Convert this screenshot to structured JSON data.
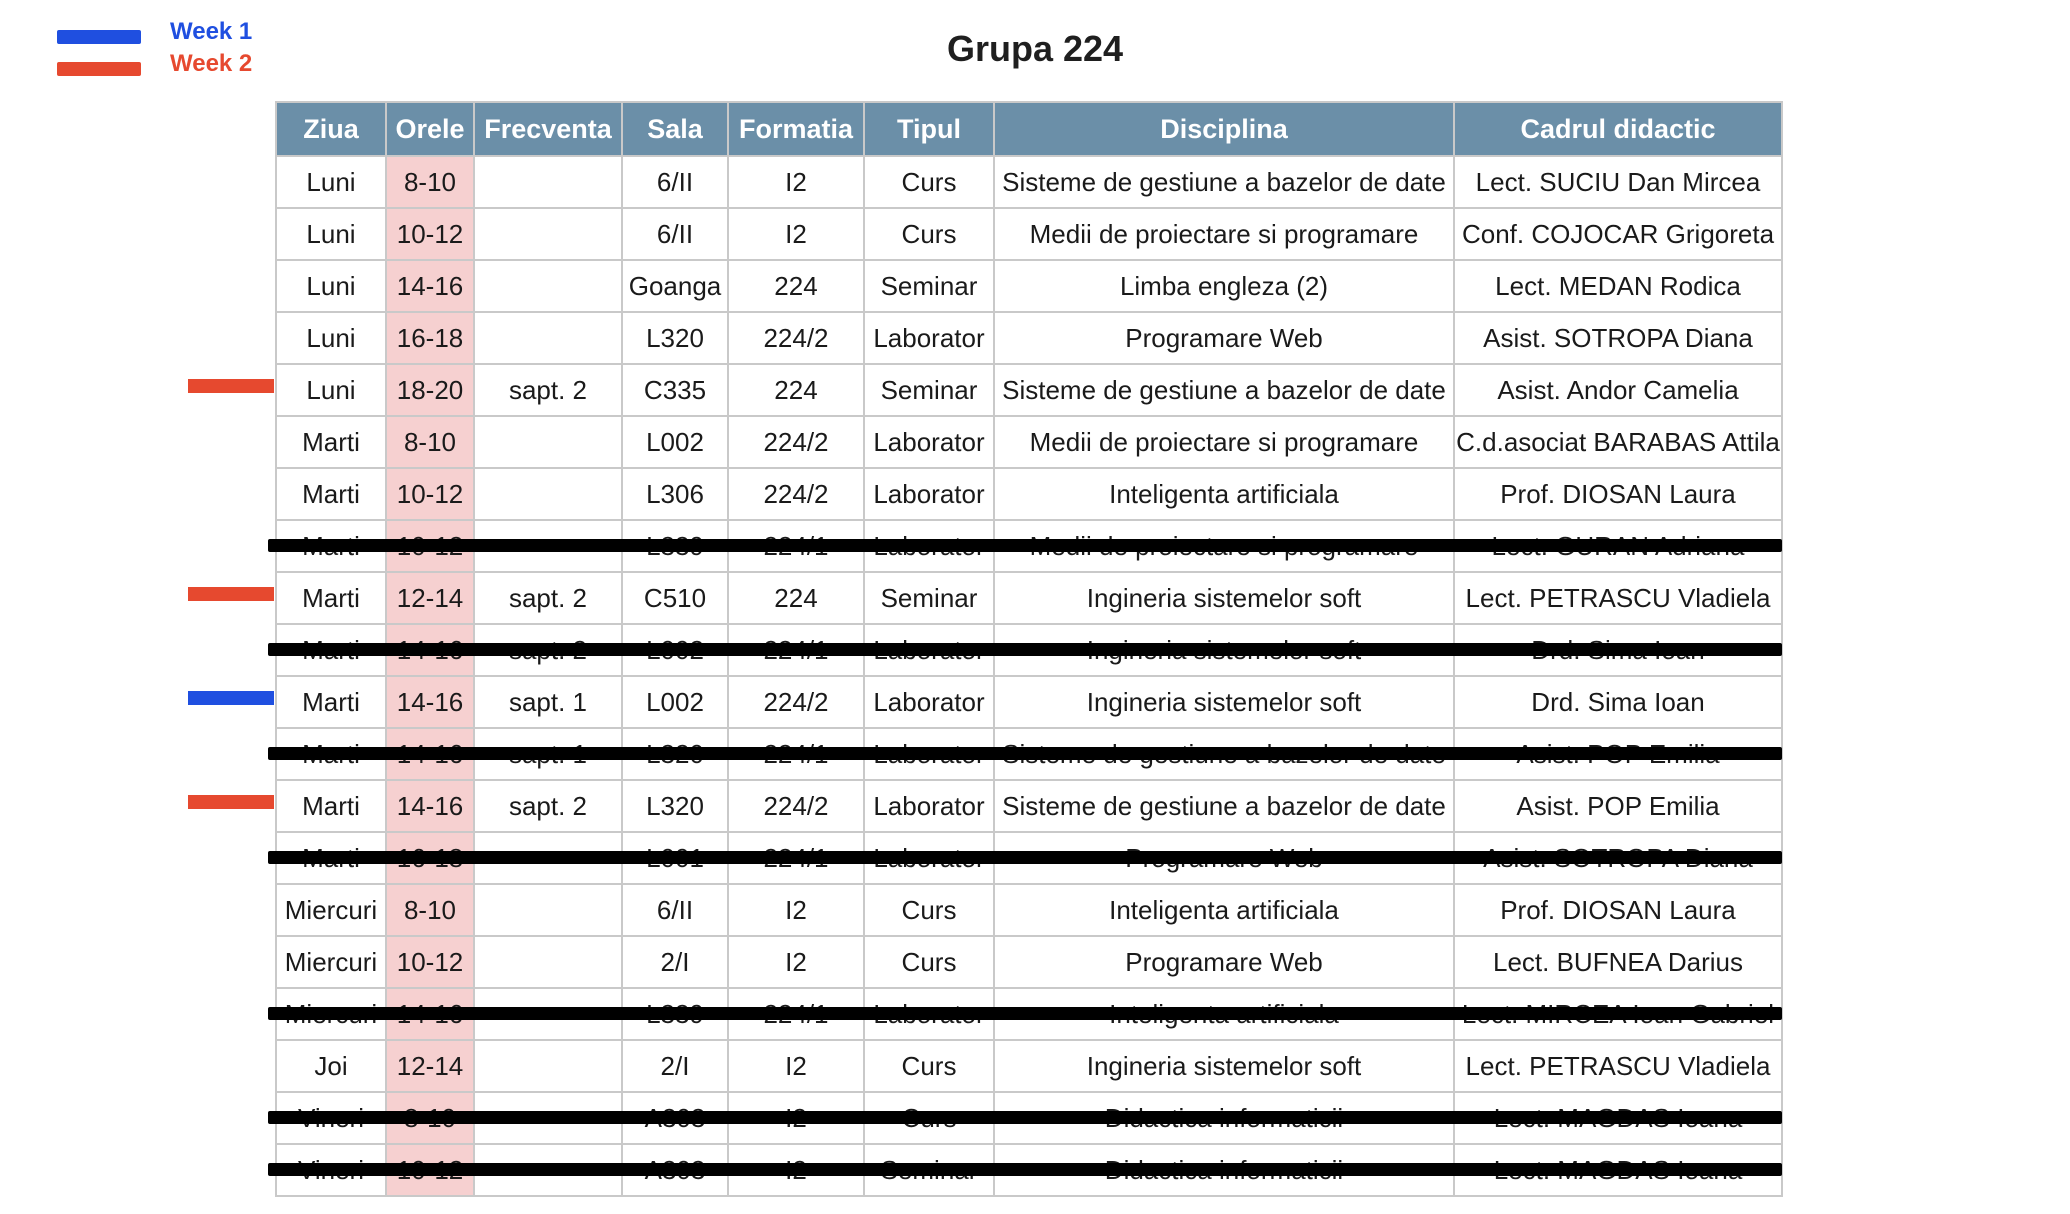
{
  "legend": [
    {
      "label": "Week 1",
      "color": "#1f4fe0"
    },
    {
      "label": "Week 2",
      "color": "#e6492f"
    }
  ],
  "title": "Grupa 224",
  "table": {
    "headers": [
      "Ziua",
      "Orele",
      "Frecventa",
      "Sala",
      "Formatia",
      "Tipul",
      "Disciplina",
      "Cadrul didactic"
    ],
    "rows": [
      {
        "ziua": "Luni",
        "orele": "8-10",
        "frecventa": "",
        "sala": "6/II",
        "formatia": "I2",
        "tipul": "Curs",
        "disciplina": "Sisteme de gestiune a bazelor de date",
        "cadru": "Lect. SUCIU Dan Mircea",
        "marker": "",
        "struck": false
      },
      {
        "ziua": "Luni",
        "orele": "10-12",
        "frecventa": "",
        "sala": "6/II",
        "formatia": "I2",
        "tipul": "Curs",
        "disciplina": "Medii de proiectare si programare",
        "cadru": "Conf. COJOCAR Grigoreta",
        "marker": "",
        "struck": false
      },
      {
        "ziua": "Luni",
        "orele": "14-16",
        "frecventa": "",
        "sala": "Goanga",
        "formatia": "224",
        "tipul": "Seminar",
        "disciplina": "Limba engleza (2)",
        "cadru": "Lect. MEDAN Rodica",
        "marker": "",
        "struck": false
      },
      {
        "ziua": "Luni",
        "orele": "16-18",
        "frecventa": "",
        "sala": "L320",
        "formatia": "224/2",
        "tipul": "Laborator",
        "disciplina": "Programare Web",
        "cadru": "Asist. SOTROPA Diana",
        "marker": "",
        "struck": false
      },
      {
        "ziua": "Luni",
        "orele": "18-20",
        "frecventa": "sapt. 2",
        "sala": "C335",
        "formatia": "224",
        "tipul": "Seminar",
        "disciplina": "Sisteme de gestiune a bazelor de date",
        "cadru": "Asist. Andor Camelia",
        "marker": "week2",
        "struck": false
      },
      {
        "ziua": "Marti",
        "orele": "8-10",
        "frecventa": "",
        "sala": "L002",
        "formatia": "224/2",
        "tipul": "Laborator",
        "disciplina": "Medii de proiectare si programare",
        "cadru": "C.d.asociat BARABAS Attila",
        "marker": "",
        "struck": false
      },
      {
        "ziua": "Marti",
        "orele": "10-12",
        "frecventa": "",
        "sala": "L306",
        "formatia": "224/2",
        "tipul": "Laborator",
        "disciplina": "Inteligenta artificiala",
        "cadru": "Prof. DIOSAN Laura",
        "marker": "",
        "struck": false
      },
      {
        "ziua": "Marti",
        "orele": "10-12",
        "frecventa": "",
        "sala": "L339",
        "formatia": "224/1",
        "tipul": "Laborator",
        "disciplina": "Medii de proiectare si programare",
        "cadru": "Lect. GURAN Adriana",
        "marker": "",
        "struck": true
      },
      {
        "ziua": "Marti",
        "orele": "12-14",
        "frecventa": "sapt. 2",
        "sala": "C510",
        "formatia": "224",
        "tipul": "Seminar",
        "disciplina": "Ingineria sistemelor soft",
        "cadru": "Lect. PETRASCU Vladiela",
        "marker": "week2",
        "struck": false
      },
      {
        "ziua": "Marti",
        "orele": "14-16",
        "frecventa": "sapt. 2",
        "sala": "L002",
        "formatia": "224/1",
        "tipul": "Laborator",
        "disciplina": "Ingineria sistemelor soft",
        "cadru": "Drd. Sima Ioan",
        "marker": "",
        "struck": true
      },
      {
        "ziua": "Marti",
        "orele": "14-16",
        "frecventa": "sapt. 1",
        "sala": "L002",
        "formatia": "224/2",
        "tipul": "Laborator",
        "disciplina": "Ingineria sistemelor soft",
        "cadru": "Drd. Sima Ioan",
        "marker": "week1",
        "struck": false
      },
      {
        "ziua": "Marti",
        "orele": "14-16",
        "frecventa": "sapt. 1",
        "sala": "L320",
        "formatia": "224/1",
        "tipul": "Laborator",
        "disciplina": "Sisteme de gestiune a bazelor de date",
        "cadru": "Asist. POP Emilia",
        "marker": "",
        "struck": true
      },
      {
        "ziua": "Marti",
        "orele": "14-16",
        "frecventa": "sapt. 2",
        "sala": "L320",
        "formatia": "224/2",
        "tipul": "Laborator",
        "disciplina": "Sisteme de gestiune a bazelor de date",
        "cadru": "Asist. POP Emilia",
        "marker": "week2",
        "struck": false
      },
      {
        "ziua": "Marti",
        "orele": "16-18",
        "frecventa": "",
        "sala": "L001",
        "formatia": "224/1",
        "tipul": "Laborator",
        "disciplina": "Programare Web",
        "cadru": "Asist. SOTROPA Diana",
        "marker": "",
        "struck": true
      },
      {
        "ziua": "Miercuri",
        "orele": "8-10",
        "frecventa": "",
        "sala": "6/II",
        "formatia": "I2",
        "tipul": "Curs",
        "disciplina": "Inteligenta artificiala",
        "cadru": "Prof. DIOSAN Laura",
        "marker": "",
        "struck": false
      },
      {
        "ziua": "Miercuri",
        "orele": "10-12",
        "frecventa": "",
        "sala": "2/I",
        "formatia": "I2",
        "tipul": "Curs",
        "disciplina": "Programare Web",
        "cadru": "Lect. BUFNEA Darius",
        "marker": "",
        "struck": false
      },
      {
        "ziua": "Miercuri",
        "orele": "14-16",
        "frecventa": "",
        "sala": "L339",
        "formatia": "224/1",
        "tipul": "Laborator",
        "disciplina": "Inteligenta artificiala",
        "cadru": "Lect. MIRCEA Ioan Gabriel",
        "marker": "",
        "struck": true
      },
      {
        "ziua": "Joi",
        "orele": "12-14",
        "frecventa": "",
        "sala": "2/I",
        "formatia": "I2",
        "tipul": "Curs",
        "disciplina": "Ingineria sistemelor soft",
        "cadru": "Lect. PETRASCU Vladiela",
        "marker": "",
        "struck": false
      },
      {
        "ziua": "Vineri",
        "orele": "8-10",
        "frecventa": "",
        "sala": "A303",
        "formatia": "I2",
        "tipul": "Curs",
        "disciplina": "Didactica informaticii",
        "cadru": "Lect. MAGDAS Ioana",
        "marker": "",
        "struck": true
      },
      {
        "ziua": "Vineri",
        "orele": "10-12",
        "frecventa": "",
        "sala": "A303",
        "formatia": "I2",
        "tipul": "Seminar",
        "disciplina": "Didactica informaticii",
        "cadru": "Lect. MAGDAS Ioana",
        "marker": "",
        "struck": true
      }
    ]
  }
}
